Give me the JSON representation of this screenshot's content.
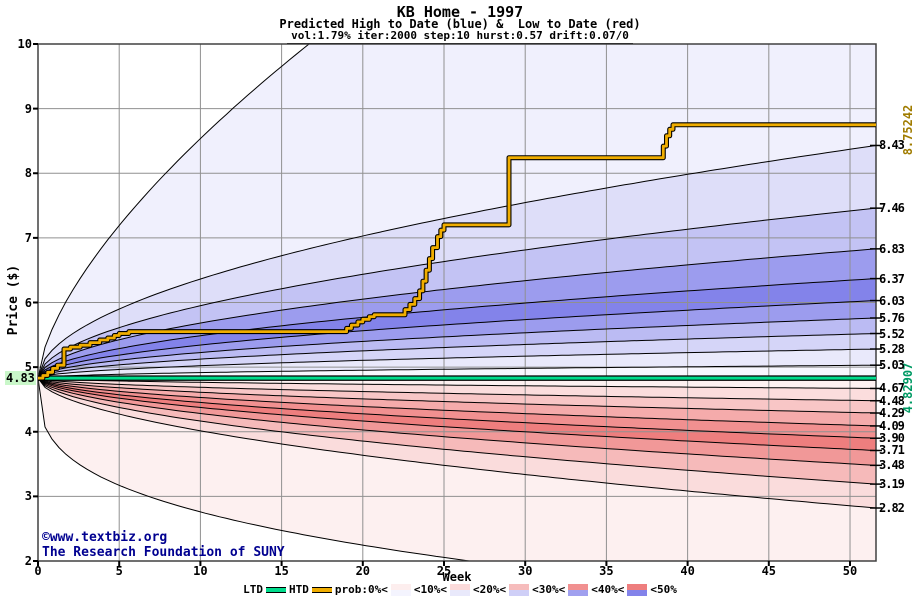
{
  "header": {
    "title": "KB Home - 1997",
    "subtitle": "Predicted High to Date (blue) &  Low to Date (red)",
    "params": "vol:1.79% iter:2000 step:10 hurst:0.57 drift:0.07/0"
  },
  "watermark": {
    "line1": "©www.textbiz.org",
    "line2": "The Research Foundation of SUNY"
  },
  "legend": {
    "series": [
      {
        "label": "LTD",
        "color": "#00dc8c"
      },
      {
        "label": "HTD",
        "color": "#f0ad00"
      }
    ],
    "prob_labels": [
      "prob:0%<",
      "<10%<",
      "<20%<",
      "<30%<",
      "<40%<",
      "<50%"
    ],
    "swatches": [
      {
        "top": "#fdeeee",
        "bottom": "#f4f4fe"
      },
      {
        "top": "#fbdada",
        "bottom": "#e9e9fb"
      },
      {
        "top": "#f6bcbc",
        "bottom": "#cfcff7"
      },
      {
        "top": "#f19090",
        "bottom": "#a0a0ef"
      },
      {
        "top": "#ee7e7e",
        "bottom": "#8383ea"
      }
    ]
  },
  "chart_data": {
    "type": "area",
    "title": "KB Home - 1997",
    "subtitle": "Predicted High to Date (blue) &  Low to Date (red)",
    "params": {
      "vol_pct": 1.79,
      "iter": 2000,
      "step": 10,
      "hurst": 0.57,
      "drift": "0.07/0"
    },
    "x_axis": {
      "label": "Week",
      "ticks": [
        0,
        5,
        10,
        15,
        20,
        25,
        30,
        35,
        40,
        45,
        50
      ],
      "range": [
        0,
        51.6
      ]
    },
    "y_axis": {
      "label": "Price ($)",
      "ticks": [
        2,
        3,
        4,
        5,
        6,
        7,
        8,
        9,
        10
      ],
      "range": [
        2,
        10
      ]
    },
    "start_price": 4.83,
    "start_price_label": "4.83",
    "percentile_curves": {
      "blue_finals": [
        5.03,
        5.28,
        5.52,
        5.76,
        6.03,
        6.37,
        6.83,
        7.46,
        8.43
      ],
      "red_finals": [
        4.67,
        4.48,
        4.29,
        4.09,
        3.9,
        3.71,
        3.48,
        3.19,
        2.82
      ],
      "blue_alpha": 0.52,
      "red_alpha": 0.55,
      "blue_envelope": {
        "virtual_final": 15.6,
        "alpha": 0.65
      },
      "red_envelope": {
        "virtual_final": 1.33,
        "alpha": 0.32
      }
    },
    "right_labels": [
      "8.43",
      "7.46",
      "6.83",
      "6.37",
      "6.03",
      "5.76",
      "5.52",
      "5.28",
      "5.03",
      "4.67",
      "4.48",
      "4.29",
      "4.09",
      "3.90",
      "3.71",
      "3.48",
      "3.19",
      "2.82"
    ],
    "band_colors_blue": [
      "#f7f7fe",
      "#e9e9fb",
      "#d5d5f8",
      "#bbbbf3",
      "#9c9cee",
      "#8383ea",
      "#9c9cee",
      "#c3c3f4",
      "#dedef9",
      "#f0f0fd"
    ],
    "band_colors_red": [
      "#fdf1f1",
      "#fbdddd",
      "#f8c6c6",
      "#f5abab",
      "#f19090",
      "#ee7e7e",
      "#f19898",
      "#f6baba",
      "#fadcdc",
      "#fdf0f0"
    ],
    "htd_steps": [
      [
        0,
        4.83
      ],
      [
        0.3,
        4.87
      ],
      [
        0.6,
        4.92
      ],
      [
        0.9,
        4.98
      ],
      [
        1.2,
        5.03
      ],
      [
        1.6,
        5.28
      ],
      [
        2.0,
        5.31
      ],
      [
        2.6,
        5.34
      ],
      [
        3.2,
        5.38
      ],
      [
        3.8,
        5.42
      ],
      [
        4.3,
        5.45
      ],
      [
        4.7,
        5.49
      ],
      [
        5.0,
        5.52
      ],
      [
        5.6,
        5.55
      ],
      [
        18.7,
        5.55
      ],
      [
        19.0,
        5.6
      ],
      [
        19.3,
        5.65
      ],
      [
        19.7,
        5.7
      ],
      [
        20.0,
        5.74
      ],
      [
        20.4,
        5.78
      ],
      [
        20.7,
        5.81
      ],
      [
        22.3,
        5.81
      ],
      [
        22.6,
        5.89
      ],
      [
        22.9,
        5.97
      ],
      [
        23.2,
        6.06
      ],
      [
        23.5,
        6.18
      ],
      [
        23.7,
        6.33
      ],
      [
        23.9,
        6.5
      ],
      [
        24.1,
        6.68
      ],
      [
        24.3,
        6.85
      ],
      [
        24.6,
        7.02
      ],
      [
        24.8,
        7.12
      ],
      [
        25.0,
        7.2
      ],
      [
        28.9,
        7.2
      ],
      [
        29.0,
        8.24
      ],
      [
        38.3,
        8.24
      ],
      [
        38.5,
        8.42
      ],
      [
        38.7,
        8.58
      ],
      [
        38.9,
        8.68
      ],
      [
        39.1,
        8.75
      ],
      [
        51.6,
        8.75
      ]
    ],
    "ltd_value": 4.829,
    "htd_final_label": "8.75242",
    "ltd_final_label": "4.82907",
    "colors": {
      "htd": "#f0ad00",
      "ltd": "#00dc8c",
      "grid": "#909090",
      "border": "#404040",
      "curve": "#000000",
      "highlight_bg": "#c9f7c9"
    }
  }
}
